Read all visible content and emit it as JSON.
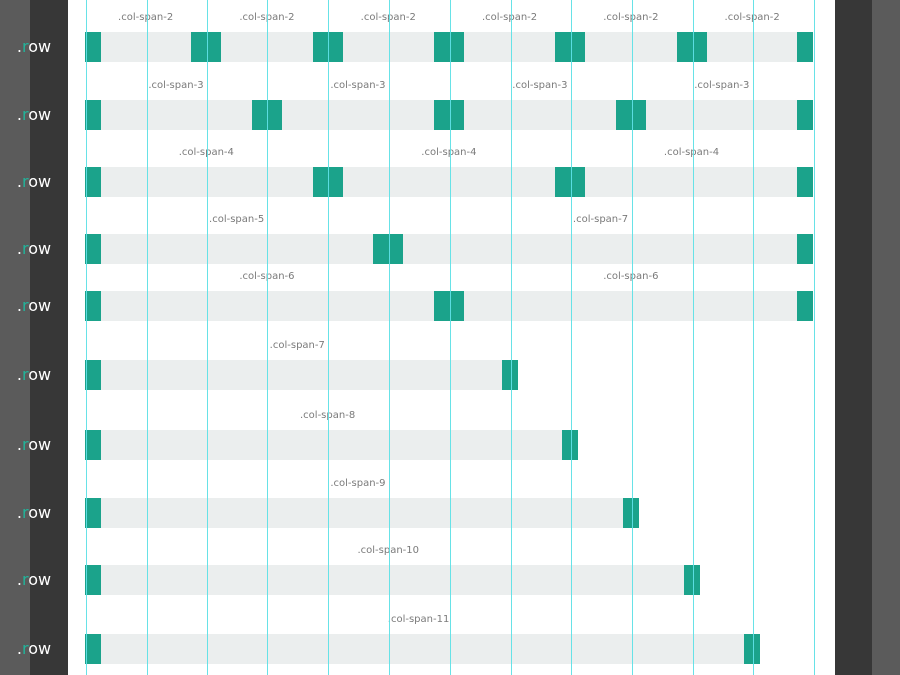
{
  "rows": [
    {
      "label_prefix": ".",
      "label_r": "r",
      "label_suffix": "ow",
      "spans": [
        {
          "label": ".col-span-2",
          "cols": 2
        },
        {
          "label": ".col-span-2",
          "cols": 2
        },
        {
          "label": ".col-span-2",
          "cols": 2
        },
        {
          "label": ".col-span-2",
          "cols": 2
        },
        {
          "label": ".col-span-2",
          "cols": 2
        },
        {
          "label": ".col-span-2",
          "cols": 2
        }
      ]
    },
    {
      "label_prefix": ".",
      "label_r": "r",
      "label_suffix": "ow",
      "spans": [
        {
          "label": ".col-span-3",
          "cols": 3
        },
        {
          "label": ".col-span-3",
          "cols": 3
        },
        {
          "label": ".col-span-3",
          "cols": 3
        },
        {
          "label": ".col-span-3",
          "cols": 3
        }
      ]
    },
    {
      "label_prefix": ".",
      "label_r": "r",
      "label_suffix": "ow",
      "spans": [
        {
          "label": ".col-span-4",
          "cols": 4
        },
        {
          "label": ".col-span-4",
          "cols": 4
        },
        {
          "label": ".col-span-4",
          "cols": 4
        }
      ]
    },
    {
      "label_prefix": ".",
      "label_r": "r",
      "label_suffix": "ow",
      "spans": [
        {
          "label": ".col-span-5",
          "cols": 5
        },
        {
          "label": ".col-span-7",
          "cols": 7
        }
      ]
    },
    {
      "label_prefix": ".",
      "label_r": "r",
      "label_suffix": "ow",
      "spans": [
        {
          "label": ".col-span-6",
          "cols": 6
        },
        {
          "label": ".col-span-6",
          "cols": 6
        }
      ]
    },
    {
      "label_prefix": ".",
      "label_r": "r",
      "label_suffix": "ow",
      "spans": [
        {
          "label": ".col-span-7",
          "cols": 7
        }
      ]
    },
    {
      "label_prefix": ".",
      "label_r": "r",
      "label_suffix": "ow",
      "spans": [
        {
          "label": ".col-span-8",
          "cols": 8
        }
      ]
    },
    {
      "label_prefix": ".",
      "label_r": "r",
      "label_suffix": "ow",
      "spans": [
        {
          "label": ".col-span-9",
          "cols": 9
        }
      ]
    },
    {
      "label_prefix": ".",
      "label_r": "r",
      "label_suffix": "ow",
      "spans": [
        {
          "label": ".col-span-10",
          "cols": 10
        }
      ]
    },
    {
      "label_prefix": ".",
      "label_r": "r",
      "label_suffix": "ow",
      "spans": [
        {
          "label": ".col-span-11",
          "cols": 11
        }
      ]
    }
  ],
  "grid": {
    "columns": 12
  },
  "colors": {
    "gutter": "#1ba38b",
    "row_background": "#ebeeee",
    "guide_line": "#5fe0e6",
    "label_accent": "#22b39a",
    "span_label": "#7a7a7a",
    "panel": "#373737",
    "outer": "#5b5b5b"
  }
}
